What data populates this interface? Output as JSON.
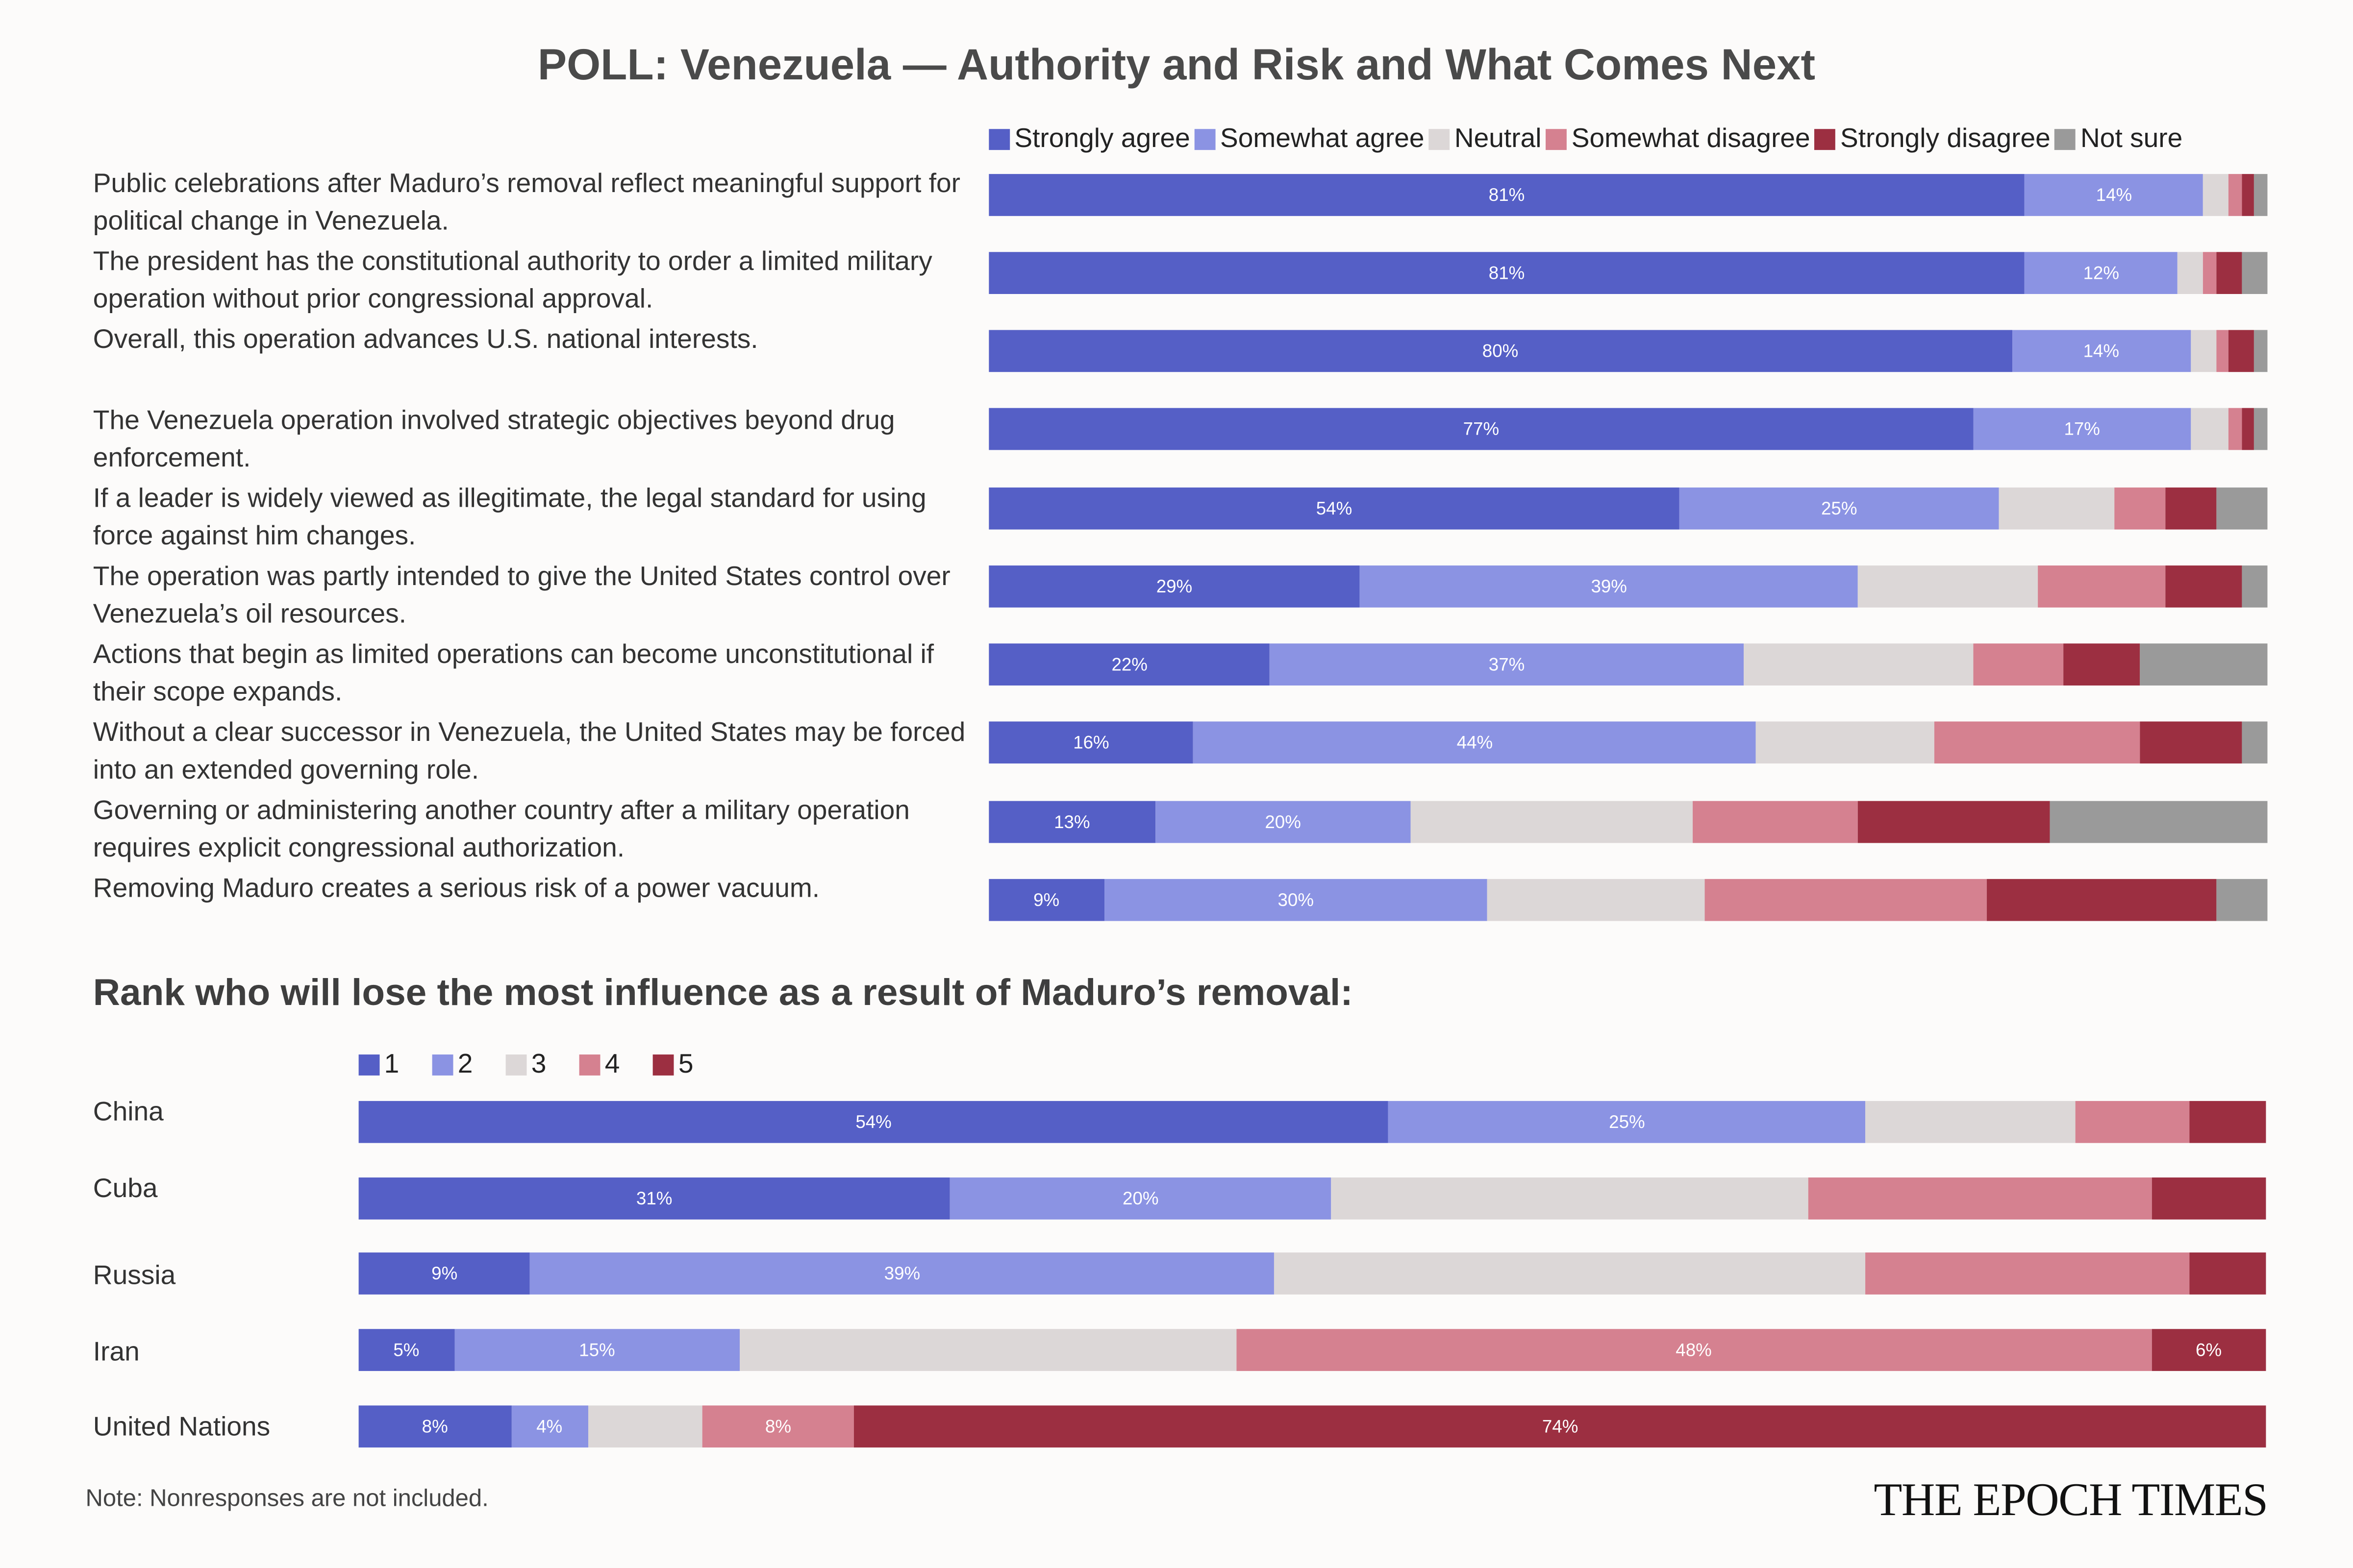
{
  "title": "POLL: Venezuela — Authority and Risk and What Comes Next",
  "colors": {
    "strongly_agree": "#555fc6",
    "somewhat_agree": "#8b93e3",
    "neutral": "#dcd7d7",
    "somewhat_disagree": "#d58190",
    "strongly_disagree": "#9c2f41",
    "not_sure": "#9a9a9a"
  },
  "chart_data": [
    {
      "type": "bar",
      "orientation": "horizontal",
      "stacked": true,
      "unit": "%",
      "xlim": [
        0,
        100
      ],
      "legend_position": "top-right",
      "series": [
        {
          "name": "Strongly agree",
          "color": "#555fc6"
        },
        {
          "name": "Somewhat agree",
          "color": "#8b93e3"
        },
        {
          "name": "Neutral",
          "color": "#dcd7d7"
        },
        {
          "name": "Somewhat disagree",
          "color": "#d58190"
        },
        {
          "name": "Strongly disagree",
          "color": "#9c2f41"
        },
        {
          "name": "Not sure",
          "color": "#9a9a9a"
        }
      ],
      "rows": [
        {
          "label": "Public celebrations after Maduro’s removal reflect meaningful support for political change in Venezuela.",
          "values": [
            81,
            14,
            2,
            1,
            1,
            1
          ],
          "value_labels": [
            "81%",
            "14%",
            "",
            "",
            "",
            ""
          ]
        },
        {
          "label": "The president has the constitutional authority to order a limited military operation without prior congressional approval.",
          "values": [
            81,
            12,
            2,
            1,
            2,
            2
          ],
          "value_labels": [
            "81%",
            "12%",
            "",
            "",
            "",
            ""
          ]
        },
        {
          "label": "Overall, this operation advances U.S. national interests.",
          "values": [
            80,
            14,
            2,
            1,
            2,
            1
          ],
          "value_labels": [
            "80%",
            "14%",
            "",
            "",
            "",
            ""
          ]
        },
        {
          "label": "The Venezuela operation involved strategic objectives beyond drug enforcement.",
          "values": [
            77,
            17,
            3,
            1,
            1,
            1
          ],
          "value_labels": [
            "77%",
            "17%",
            "",
            "",
            "",
            ""
          ]
        },
        {
          "label": "If a leader is widely viewed as illegitimate, the legal standard for using force against him changes.",
          "values": [
            54,
            25,
            9,
            4,
            4,
            4
          ],
          "value_labels": [
            "54%",
            "25%",
            "",
            "",
            "",
            ""
          ]
        },
        {
          "label": "The operation was partly intended to give the United States control over Venezuela’s oil resources.",
          "values": [
            29,
            39,
            14,
            10,
            6,
            2
          ],
          "value_labels": [
            "29%",
            "39%",
            "",
            "",
            "",
            ""
          ]
        },
        {
          "label": "Actions that begin as limited operations can become unconstitutional if their scope expands.",
          "values": [
            22,
            37,
            18,
            7,
            6,
            10
          ],
          "value_labels": [
            "22%",
            "37%",
            "",
            "",
            "",
            ""
          ]
        },
        {
          "label": "Without a clear successor in Venezuela, the United States may be forced into an extended governing role.",
          "values": [
            16,
            44,
            14,
            16,
            8,
            2
          ],
          "value_labels": [
            "16%",
            "44%",
            "",
            "",
            "",
            ""
          ]
        },
        {
          "label": "Governing or administering another country after a military operation requires explicit congressional authorization.",
          "values": [
            13,
            20,
            22,
            13,
            15,
            17
          ],
          "value_labels": [
            "13%",
            "20%",
            "",
            "",
            "",
            ""
          ]
        },
        {
          "label": "Removing Maduro creates a serious risk of a power vacuum.",
          "values": [
            9,
            30,
            17,
            22,
            18,
            4
          ],
          "value_labels": [
            "9%",
            "30%",
            "",
            "",
            "",
            ""
          ]
        }
      ]
    },
    {
      "type": "bar",
      "orientation": "horizontal",
      "stacked": true,
      "unit": "%",
      "xlim": [
        0,
        100
      ],
      "title": "Rank who will lose the most influence as a result of Maduro’s removal:",
      "legend_position": "top-left",
      "series": [
        {
          "name": "1",
          "color": "#555fc6"
        },
        {
          "name": "2",
          "color": "#8b93e3"
        },
        {
          "name": "3",
          "color": "#dcd7d7"
        },
        {
          "name": "4",
          "color": "#d58190"
        },
        {
          "name": "5",
          "color": "#9c2f41"
        }
      ],
      "rows": [
        {
          "label": "China",
          "values": [
            54,
            25,
            11,
            6,
            4
          ],
          "value_labels": [
            "54%",
            "25%",
            "",
            "",
            ""
          ]
        },
        {
          "label": "Cuba",
          "values": [
            31,
            20,
            25,
            18,
            6
          ],
          "value_labels": [
            "31%",
            "20%",
            "",
            "",
            ""
          ]
        },
        {
          "label": "Russia",
          "values": [
            9,
            39,
            31,
            17,
            4
          ],
          "value_labels": [
            "9%",
            "39%",
            "",
            "",
            ""
          ]
        },
        {
          "label": "Iran",
          "values": [
            5,
            15,
            26,
            48,
            6
          ],
          "value_labels": [
            "5%",
            "15%",
            "",
            "48%",
            "6%"
          ]
        },
        {
          "label": "United Nations",
          "values": [
            8,
            4,
            6,
            8,
            74
          ],
          "value_labels": [
            "8%",
            "4%",
            "",
            "8%",
            "74%"
          ]
        }
      ]
    }
  ],
  "note": "Note: Nonresponses are not included.",
  "logo": "THE EPOCH TIMES"
}
